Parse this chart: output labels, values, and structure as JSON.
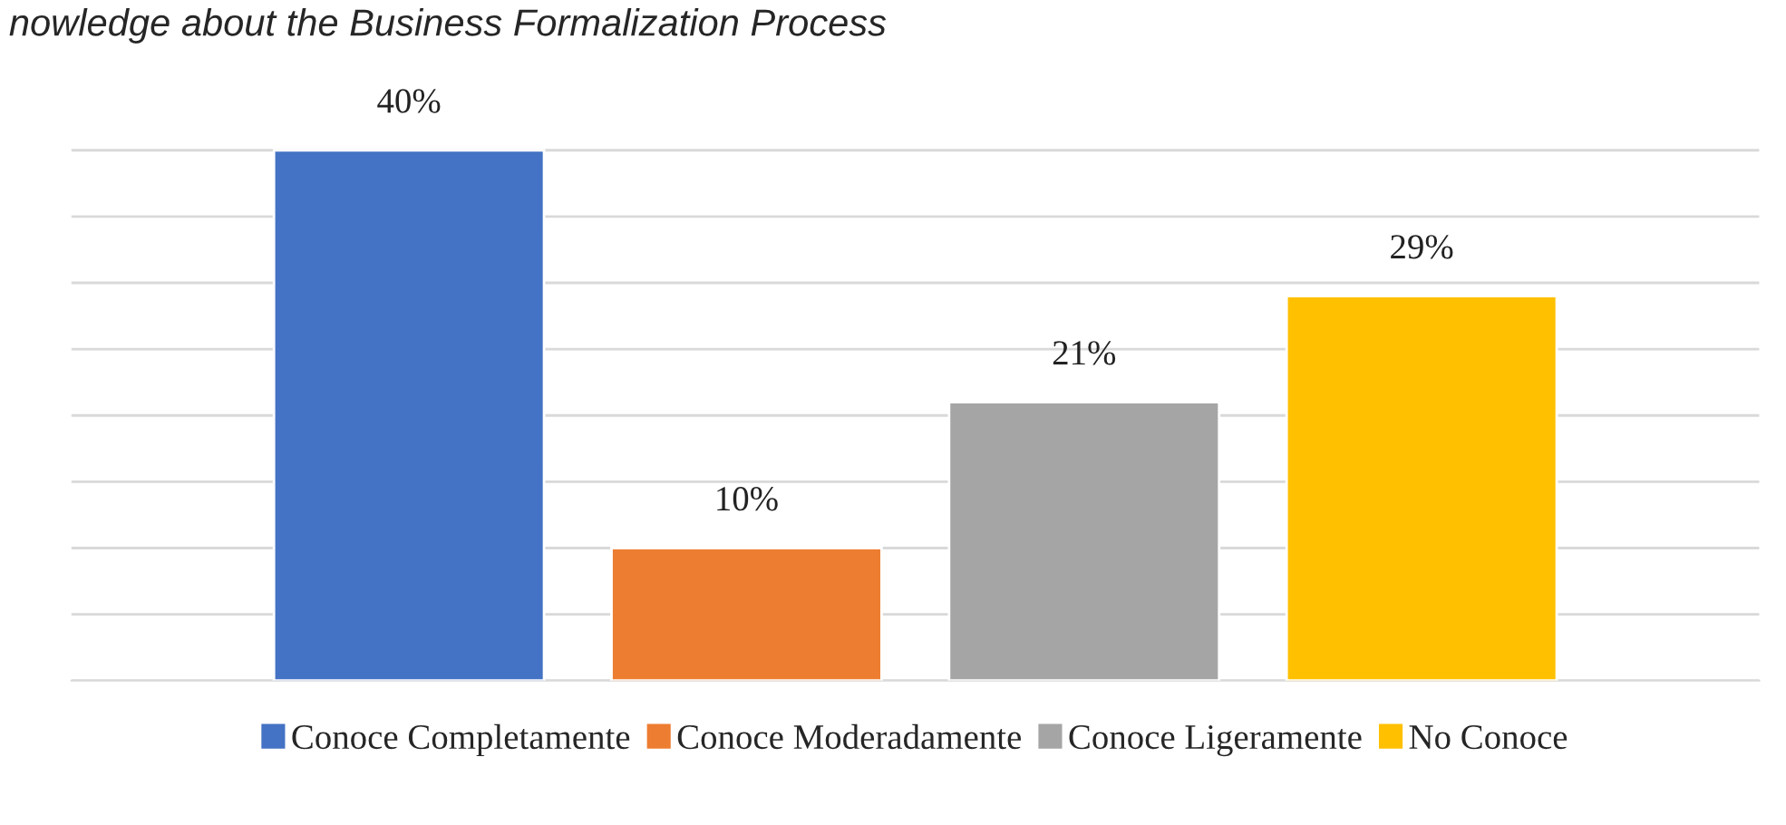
{
  "chart_data": {
    "type": "bar",
    "title": "nowledge about the Business Formalization Process",
    "categories": [
      null
    ],
    "series": [
      {
        "name": "Conoce Completamente",
        "color": "#4472c4",
        "values": [
          40
        ],
        "value_labels": [
          "40%"
        ]
      },
      {
        "name": "Conoce Moderadamente",
        "color": "#ed7d31",
        "values": [
          10
        ],
        "value_labels": [
          "10%"
        ]
      },
      {
        "name": "Conoce Ligeramente",
        "color": "#a5a5a5",
        "values": [
          21
        ],
        "value_labels": [
          "21%"
        ]
      },
      {
        "name": "No Conoce",
        "color": "#ffc000",
        "values": [
          29
        ],
        "value_labels": [
          "29%"
        ]
      }
    ],
    "grid": "y",
    "legend": "bottom"
  }
}
